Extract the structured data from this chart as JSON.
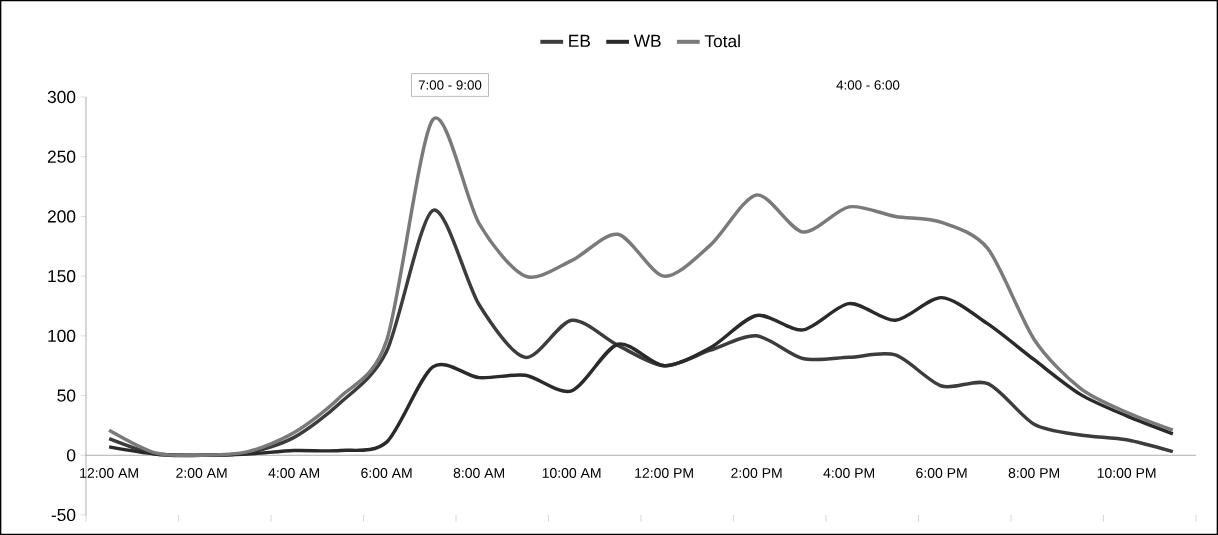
{
  "chart_data": {
    "type": "line",
    "categories": [
      "12:00 AM",
      null,
      "2:00 AM",
      null,
      "4:00 AM",
      null,
      "6:00 AM",
      null,
      "8:00 AM",
      null,
      "10:00 AM",
      null,
      "12:00 PM",
      null,
      "2:00 PM",
      null,
      "4:00 PM",
      null,
      "6:00 PM",
      null,
      "8:00 PM",
      null,
      "10:00 PM",
      null
    ],
    "series": [
      {
        "name": "EB",
        "color": "#3c3c3c",
        "values": [
          14,
          1,
          0,
          2,
          15,
          44,
          87,
          205,
          126,
          82,
          113,
          92,
          75,
          88,
          100,
          81,
          82,
          84,
          58,
          60,
          26,
          17,
          13,
          3
        ]
      },
      {
        "name": "WB",
        "color": "#2a2a2a",
        "values": [
          7,
          1,
          0,
          1,
          4,
          4,
          11,
          74,
          65,
          67,
          54,
          93,
          75,
          90,
          117,
          105,
          127,
          113,
          132,
          110,
          80,
          51,
          33,
          18
        ]
      },
      {
        "name": "Total",
        "color": "#7a7a7a",
        "values": [
          21,
          2,
          0,
          3,
          19,
          49,
          96,
          281,
          194,
          150,
          163,
          185,
          150,
          176,
          218,
          187,
          208,
          200,
          195,
          173,
          97,
          56,
          36,
          21
        ]
      }
    ],
    "ylim": [
      -50,
      300
    ],
    "yticks": [
      -50,
      0,
      50,
      100,
      150,
      200,
      250,
      300
    ],
    "legend": "top",
    "marker": "none",
    "line_style": "solid",
    "annotations": [
      "7:00 - 9:00",
      "4:00 - 6:00"
    ]
  }
}
